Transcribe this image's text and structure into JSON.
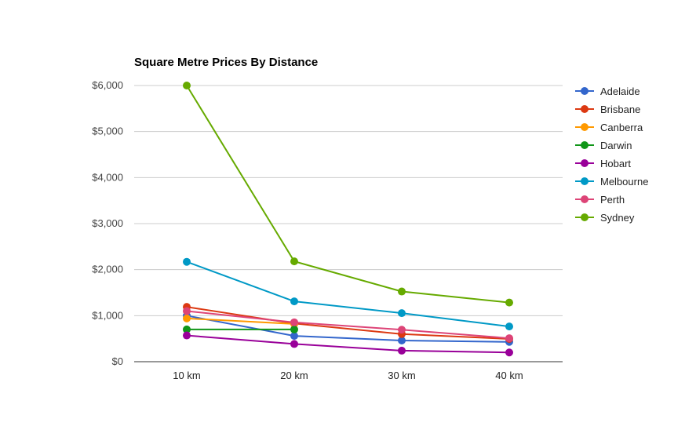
{
  "chart_data": {
    "type": "line",
    "title": "Square Metre Prices By Distance",
    "xlabel": "",
    "ylabel": "",
    "categories": [
      "10 km",
      "20 km",
      "30 km",
      "40 km"
    ],
    "ylim": [
      0,
      6000
    ],
    "yticks": [
      0,
      1000,
      2000,
      3000,
      4000,
      5000,
      6000
    ],
    "ytick_labels": [
      "$0",
      "$1,000",
      "$2,000",
      "$3,000",
      "$4,000",
      "$5,000",
      "$6,000"
    ],
    "grid": true,
    "legend_position": "right",
    "series": [
      {
        "name": "Adelaide",
        "color": "#3366cc",
        "values": [
          1000,
          560,
          460,
          430
        ]
      },
      {
        "name": "Brisbane",
        "color": "#dc3912",
        "values": [
          1190,
          830,
          600,
          495
        ]
      },
      {
        "name": "Canberra",
        "color": "#ff9900",
        "values": [
          940,
          820,
          null,
          null
        ]
      },
      {
        "name": "Darwin",
        "color": "#109618",
        "values": [
          700,
          700,
          null,
          null
        ]
      },
      {
        "name": "Hobart",
        "color": "#990099",
        "values": [
          570,
          385,
          240,
          200
        ]
      },
      {
        "name": "Melbourne",
        "color": "#0099c6",
        "values": [
          2170,
          1310,
          1055,
          765
        ]
      },
      {
        "name": "Perth",
        "color": "#dd4477",
        "values": [
          1100,
          855,
          695,
          510
        ]
      },
      {
        "name": "Sydney",
        "color": "#66aa00",
        "values": [
          6000,
          2180,
          1525,
          1285
        ]
      }
    ]
  }
}
